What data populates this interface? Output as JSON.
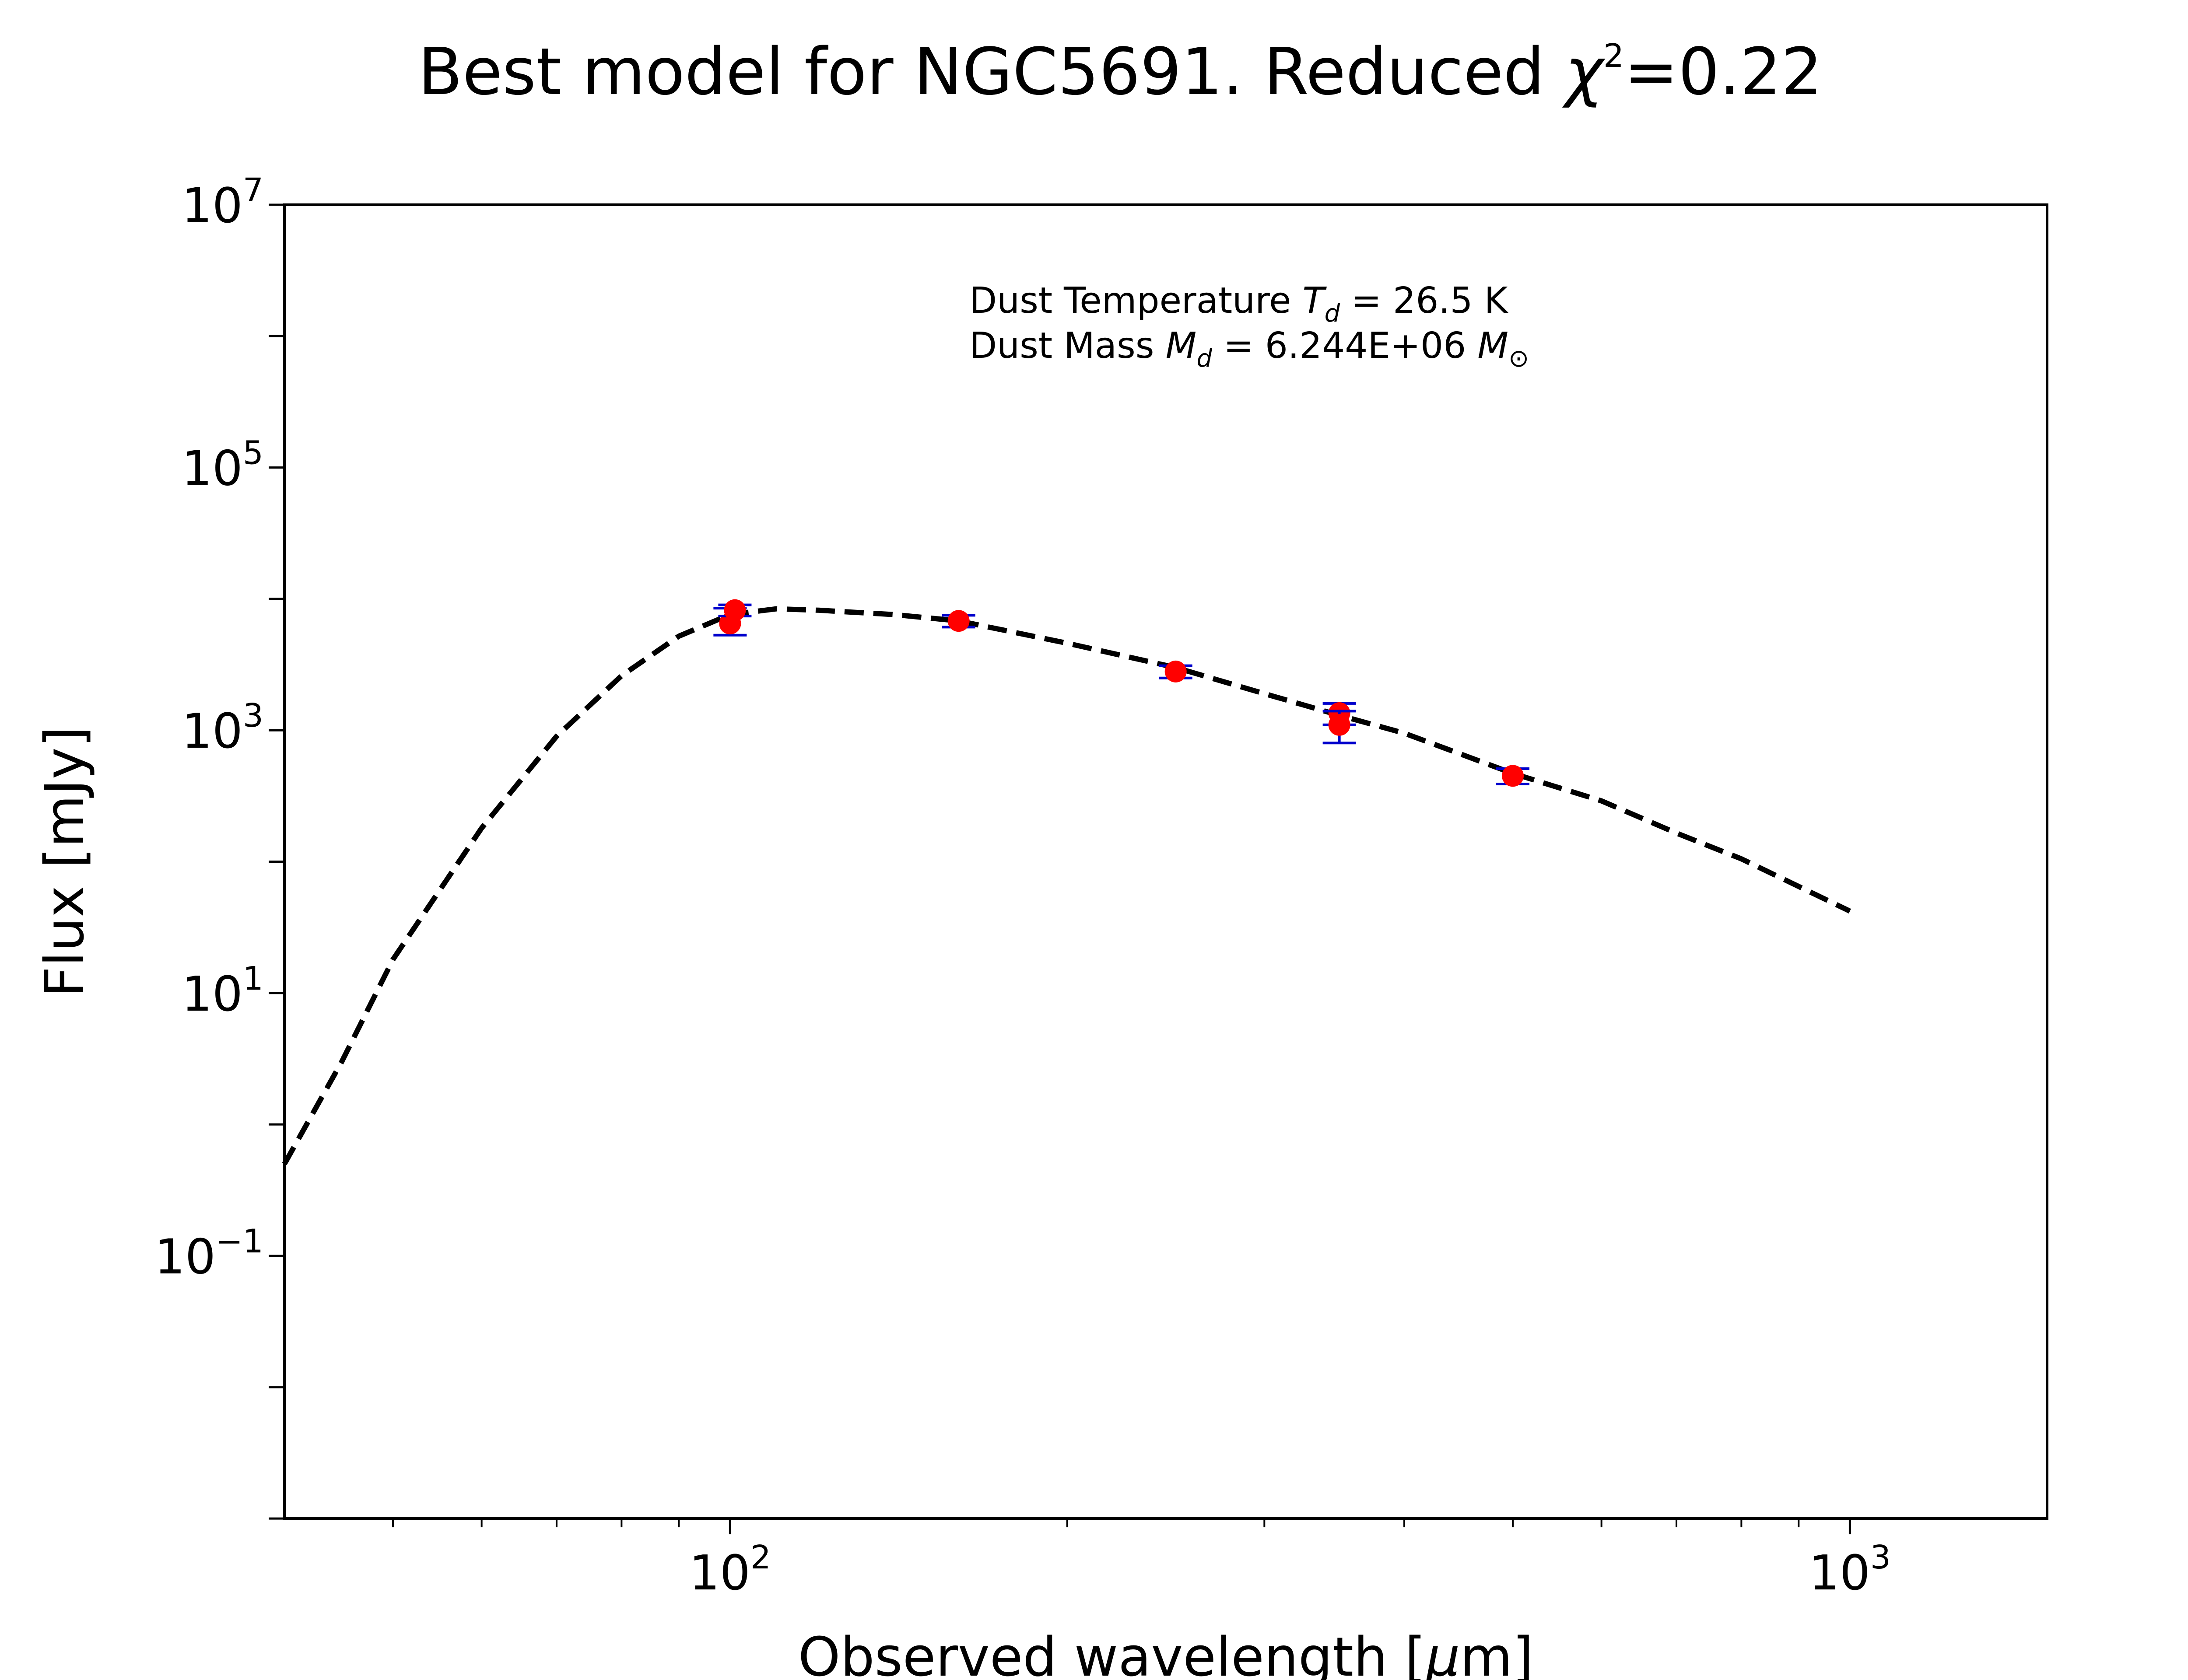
{
  "chart_data": {
    "type": "scatter",
    "title": "Best model for NGC5691. Reduced χ²=0.22",
    "title_parts": {
      "prefix": "Best model for NGC5691. Reduced ",
      "chi": "χ",
      "chi_exp": "2",
      "suffix": "=0.22"
    },
    "xlabel": "Observed wavelength [μm]",
    "xlabel_parts": {
      "prefix": "Observed wavelength [",
      "mu": "μ",
      "suffix": "m]"
    },
    "ylabel": "Flux [mJy]",
    "xscale": "log",
    "yscale": "log",
    "xlim": [
      40,
      1500
    ],
    "ylim": [
      0.001,
      10000000
    ],
    "x_ticks": [
      {
        "value": 100,
        "base": "10",
        "exp": "2"
      },
      {
        "value": 1000,
        "base": "10",
        "exp": "3"
      }
    ],
    "y_ticks": [
      {
        "value": 0.1,
        "base": "10",
        "exp": "−1"
      },
      {
        "value": 10,
        "base": "10",
        "exp": "1"
      },
      {
        "value": 1000,
        "base": "10",
        "exp": "3"
      },
      {
        "value": 100000,
        "base": "10",
        "exp": "5"
      },
      {
        "value": 10000000,
        "base": "10",
        "exp": "7"
      }
    ],
    "grid": false,
    "legend": "none",
    "annotations": {
      "line1": {
        "prefix": "Dust Temperature ",
        "sym": "T",
        "sub": "d",
        "suffix": " = 26.5 K"
      },
      "line2": {
        "prefix": "Dust Mass ",
        "sym": "M",
        "sub": "d",
        "mid": " = 6.244E+06 ",
        "sym2": "M",
        "sub2": "⊙"
      }
    },
    "series": [
      {
        "kind": "model",
        "style": "dashed",
        "color": "#000000",
        "x": [
          40,
          45,
          50,
          55,
          60,
          70,
          80,
          90,
          100,
          110,
          120,
          140,
          160,
          200,
          250,
          300,
          350,
          400,
          500,
          600,
          700,
          800,
          1000
        ],
        "y": [
          0.5,
          3,
          18,
          60,
          180,
          900,
          2600,
          5200,
          7600,
          8400,
          8200,
          7600,
          6800,
          4600,
          3000,
          1900,
          1300,
          950,
          470,
          290,
          165,
          105,
          42
        ]
      },
      {
        "kind": "observations",
        "marker_color": "#ff0000",
        "errorbar_color": "#0000cc",
        "points": [
          {
            "x": 100,
            "y": 6500,
            "err_low": 1200,
            "err_high": 2000
          },
          {
            "x": 101,
            "y": 8200,
            "err_low": 800,
            "err_high": 800
          },
          {
            "x": 160,
            "y": 6800,
            "err_low": 700,
            "err_high": 700
          },
          {
            "x": 250,
            "y": 2800,
            "err_low": 300,
            "err_high": 300
          },
          {
            "x": 350,
            "y": 1350,
            "err_low": 250,
            "err_high": 250
          },
          {
            "x": 350,
            "y": 1100,
            "err_low": 300,
            "err_high": 300
          },
          {
            "x": 500,
            "y": 450,
            "err_low": 60,
            "err_high": 60
          }
        ]
      }
    ]
  }
}
